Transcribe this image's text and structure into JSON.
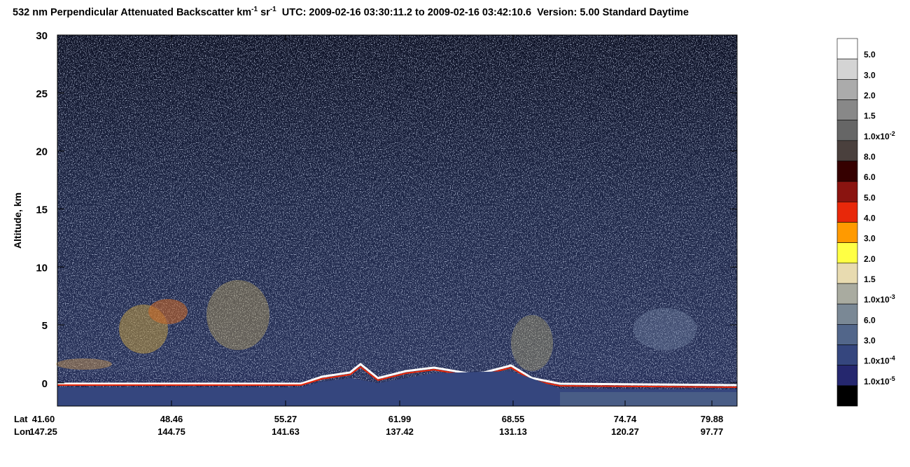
{
  "chart_data": {
    "type": "curtain",
    "title": [
      "532 nm Perpendicular Attenuated Backscatter km",
      "-1",
      " sr",
      "-1",
      "  UTC: 2009-02-16 03:30:11.2 to 2009-02-16 03:42:10.6  Version: 5.00 Standard Daytime"
    ],
    "ylabel": "Altitude, km",
    "ylim": [
      -2,
      30
    ],
    "yticks": [
      0,
      5,
      10,
      15,
      20,
      25,
      30
    ],
    "x_rows": [
      {
        "name": "Lat",
        "labels": [
          "41.60",
          "48.46",
          "55.27",
          "61.99",
          "68.55",
          "74.74",
          "79.88"
        ]
      },
      {
        "name": "Lon",
        "labels": [
          "147.25",
          "144.75",
          "141.63",
          "137.42",
          "131.13",
          "120.27",
          "97.77"
        ]
      }
    ],
    "colorbar": {
      "colors": [
        "#ffffff",
        "#d4d4d4",
        "#ababab",
        "#888888",
        "#666666",
        "#4a403d",
        "#350000",
        "#8a1410",
        "#e8280a",
        "#ff9a00",
        "#ffff44",
        "#e8dbb0",
        "#a9aba0",
        "#7a8895",
        "#52668a",
        "#35467e",
        "#25276e",
        "#000000"
      ],
      "labels": [
        [
          "5.0"
        ],
        [
          "3.0"
        ],
        [
          "2.0"
        ],
        [
          "1.5"
        ],
        [
          "1.0x10",
          "-2"
        ],
        [
          "8.0"
        ],
        [
          "6.0"
        ],
        [
          "5.0"
        ],
        [
          "4.0"
        ],
        [
          "3.0"
        ],
        [
          "2.0"
        ],
        [
          "1.5"
        ],
        [
          "1.0x10",
          "-3"
        ],
        [
          "6.0"
        ],
        [
          "3.0"
        ],
        [
          "1.0x10",
          "-4"
        ],
        [
          "1.0x10",
          "-5"
        ]
      ]
    }
  }
}
